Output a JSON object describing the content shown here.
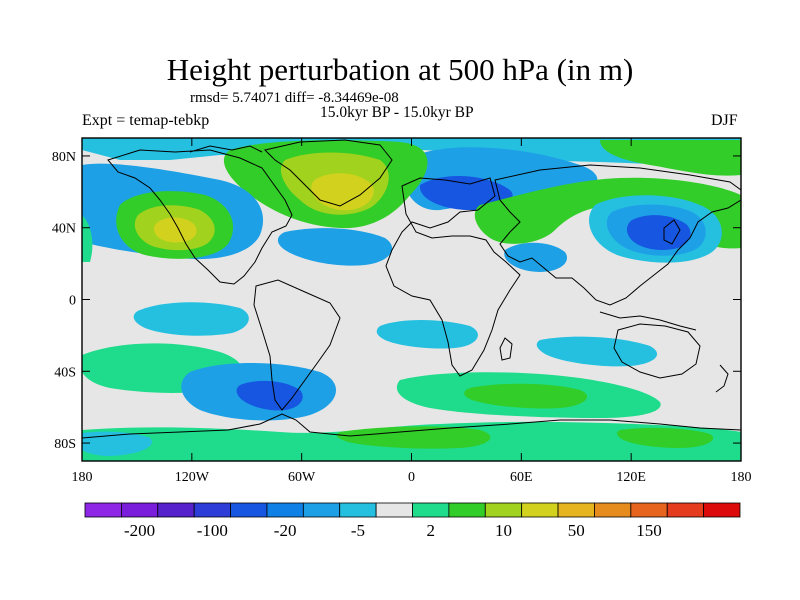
{
  "title": "Height perturbation at 500 hPa (in m)",
  "rmsd_line": "rmsd= 5.74071  diff= -8.34469e-08",
  "periods": "15.0kyr BP - 15.0kyr BP",
  "experiment": "Expt = temap-tebkp",
  "season": "DJF",
  "lat_ticks": [
    "80N",
    "40N",
    "0",
    "40S",
    "80S"
  ],
  "lon_ticks": [
    "180",
    "120W",
    "60W",
    "0",
    "60E",
    "120E",
    "180"
  ],
  "colorbar": {
    "colors": [
      "#8e28e6",
      "#7a1edc",
      "#5522cc",
      "#2d3ed8",
      "#1656e0",
      "#0f80e6",
      "#1ea0e6",
      "#25c0e0",
      "#e6e6e6",
      "#1edc8c",
      "#32cd28",
      "#a0d21e",
      "#d2d21e",
      "#e6b41e",
      "#e68c1e",
      "#e6641e",
      "#e63c1e",
      "#dc0a0a"
    ],
    "labels": [
      "-200",
      "-100",
      "-20",
      "-5",
      "2",
      "10",
      "50",
      "150"
    ]
  },
  "field": {
    "colors": {
      "neutral": "#e6e6e6",
      "cyan": "#25c0e0",
      "lightblue": "#1ea0e6",
      "blue": "#1656e0",
      "darkblue": "#2d3ed8",
      "green": "#1edc8c",
      "lime": "#32cd28",
      "yellowgreen": "#a0d21e",
      "yellow": "#d2d21e",
      "orange": "#e6b41e"
    }
  }
}
